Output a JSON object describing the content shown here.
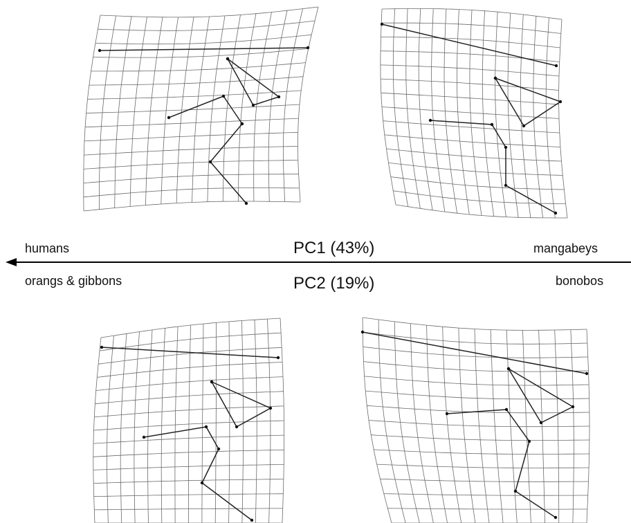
{
  "labels": {
    "pc1": "PC1 (43%)",
    "pc2": "PC2 (19%)",
    "left_pc1": "humans",
    "right_pc1": "mangabeys",
    "left_pc2": "orangs & gibbons",
    "right_pc2": "bonobos"
  },
  "colors": {
    "grid": "#6a6a6a",
    "wire": "#222222",
    "axis": "#000000"
  },
  "panels": [
    {
      "id": "pc1-negative",
      "arrangement": "top-left"
    },
    {
      "id": "pc1-positive",
      "arrangement": "top-right"
    },
    {
      "id": "pc2-negative",
      "arrangement": "bottom-left"
    },
    {
      "id": "pc2-positive",
      "arrangement": "bottom-right"
    }
  ]
}
